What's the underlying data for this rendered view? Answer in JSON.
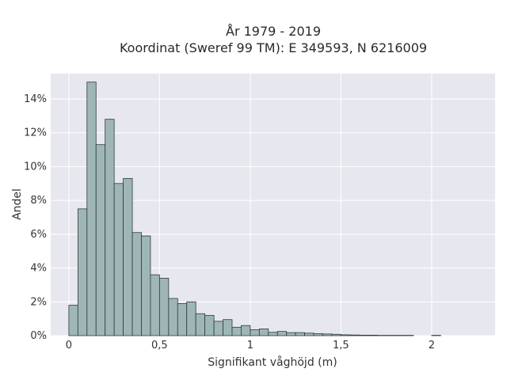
{
  "chart_data": {
    "type": "bar",
    "title": "År 1979 - 2019",
    "subtitle": "Koordinat (Sweref 99 TM): E 349593, N 6216009",
    "xlabel": "Signifikant våghöjd (m)",
    "ylabel": "Andel",
    "xlim": [
      -0.1,
      2.35
    ],
    "ylim": [
      0,
      15.5
    ],
    "x_ticks": [
      0,
      0.5,
      1,
      1.5,
      2
    ],
    "x_tick_labels": [
      "0",
      "0,5",
      "1",
      "1,5",
      "2"
    ],
    "y_ticks": [
      0,
      2,
      4,
      6,
      8,
      10,
      12,
      14
    ],
    "y_tick_labels": [
      "0%",
      "2%",
      "4%",
      "6%",
      "8%",
      "10%",
      "12%",
      "14%"
    ],
    "grid": true,
    "bin_width": 0.05,
    "bin_starts": [
      0.0,
      0.05,
      0.1,
      0.15,
      0.2,
      0.25,
      0.3,
      0.35,
      0.4,
      0.45,
      0.5,
      0.55,
      0.6,
      0.65,
      0.7,
      0.75,
      0.8,
      0.85,
      0.9,
      0.95,
      1.0,
      1.05,
      1.1,
      1.15,
      1.2,
      1.25,
      1.3,
      1.35,
      1.4,
      1.45,
      1.5,
      1.55,
      1.6,
      1.65,
      1.7,
      1.75,
      1.8,
      1.85,
      2.0
    ],
    "values": [
      1.8,
      7.5,
      15.0,
      11.3,
      12.8,
      9.0,
      9.3,
      6.1,
      5.9,
      3.6,
      3.4,
      2.2,
      1.9,
      2.0,
      1.3,
      1.2,
      0.85,
      0.95,
      0.5,
      0.6,
      0.35,
      0.4,
      0.2,
      0.25,
      0.18,
      0.18,
      0.15,
      0.12,
      0.1,
      0.08,
      0.05,
      0.04,
      0.03,
      0.03,
      0.02,
      0.02,
      0.02,
      0.02,
      0.02
    ]
  }
}
